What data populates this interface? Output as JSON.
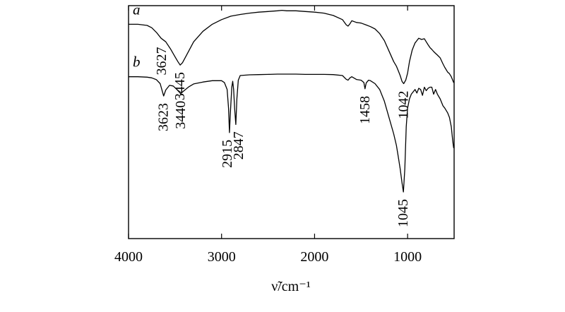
{
  "chart_data": {
    "type": "line",
    "xlabel": "ν̃/cm⁻¹",
    "xlim": [
      4000,
      500
    ],
    "x_reversed": true,
    "x_ticks": [
      4000,
      3000,
      2000,
      1000
    ],
    "x_tick_labels": [
      "4000",
      "3000",
      "2000",
      "1000"
    ],
    "ylabel": "",
    "y_ticks_shown": false,
    "grid": false,
    "series": [
      {
        "name": "a",
        "note": "IR spectrum a (upper trace), relative transmittance",
        "x": [
          4000,
          3900,
          3800,
          3750,
          3700,
          3650,
          3600,
          3550,
          3500,
          3470,
          3445,
          3420,
          3380,
          3300,
          3200,
          3100,
          3000,
          2900,
          2800,
          2700,
          2600,
          2500,
          2400,
          2350,
          2300,
          2200,
          2100,
          2000,
          1900,
          1800,
          1700,
          1660,
          1640,
          1620,
          1600,
          1550,
          1500,
          1450,
          1400,
          1350,
          1300,
          1250,
          1200,
          1150,
          1120,
          1100,
          1080,
          1060,
          1042,
          1020,
          1000,
          980,
          950,
          920,
          900,
          880,
          850,
          820,
          800,
          780,
          760,
          740,
          720,
          700,
          680,
          650,
          620,
          600,
          570,
          550,
          530,
          515,
          505,
          500
        ],
        "y": [
          0.92,
          0.92,
          0.915,
          0.905,
          0.885,
          0.86,
          0.845,
          0.815,
          0.78,
          0.76,
          0.745,
          0.755,
          0.785,
          0.845,
          0.89,
          0.92,
          0.94,
          0.955,
          0.962,
          0.968,
          0.972,
          0.975,
          0.978,
          0.98,
          0.978,
          0.978,
          0.975,
          0.972,
          0.968,
          0.958,
          0.94,
          0.918,
          0.912,
          0.922,
          0.935,
          0.928,
          0.925,
          0.918,
          0.91,
          0.9,
          0.88,
          0.85,
          0.805,
          0.76,
          0.74,
          0.72,
          0.7,
          0.675,
          0.665,
          0.68,
          0.71,
          0.76,
          0.81,
          0.84,
          0.85,
          0.86,
          0.855,
          0.858,
          0.845,
          0.832,
          0.82,
          0.812,
          0.803,
          0.795,
          0.788,
          0.776,
          0.75,
          0.735,
          0.715,
          0.708,
          0.695,
          0.68,
          0.67,
          0.67
        ]
      },
      {
        "name": "b",
        "note": "IR spectrum b (lower trace), relative transmittance",
        "x": [
          4000,
          3900,
          3800,
          3750,
          3700,
          3660,
          3623,
          3600,
          3560,
          3520,
          3480,
          3440,
          3400,
          3350,
          3300,
          3200,
          3100,
          3000,
          2970,
          2940,
          2925,
          2915,
          2905,
          2890,
          2880,
          2870,
          2860,
          2847,
          2835,
          2820,
          2800,
          2700,
          2600,
          2500,
          2400,
          2300,
          2200,
          2100,
          2000,
          1900,
          1800,
          1700,
          1660,
          1640,
          1620,
          1600,
          1550,
          1500,
          1470,
          1458,
          1445,
          1420,
          1400,
          1350,
          1300,
          1250,
          1200,
          1150,
          1120,
          1100,
          1080,
          1060,
          1045,
          1030,
          1015,
          1000,
          980,
          960,
          940,
          920,
          900,
          880,
          860,
          840,
          820,
          800,
          780,
          760,
          740,
          720,
          700,
          680,
          650,
          620,
          600,
          570,
          550,
          530,
          515,
          505,
          500
        ],
        "y": [
          0.695,
          0.695,
          0.693,
          0.69,
          0.682,
          0.665,
          0.612,
          0.638,
          0.658,
          0.655,
          0.64,
          0.622,
          0.636,
          0.652,
          0.664,
          0.672,
          0.678,
          0.678,
          0.67,
          0.64,
          0.56,
          0.455,
          0.54,
          0.65,
          0.675,
          0.64,
          0.56,
          0.49,
          0.6,
          0.68,
          0.7,
          0.703,
          0.704,
          0.705,
          0.706,
          0.706,
          0.706,
          0.705,
          0.705,
          0.705,
          0.704,
          0.7,
          0.684,
          0.68,
          0.69,
          0.695,
          0.683,
          0.68,
          0.67,
          0.643,
          0.668,
          0.68,
          0.678,
          0.665,
          0.64,
          0.59,
          0.52,
          0.45,
          0.4,
          0.35,
          0.3,
          0.24,
          0.2,
          0.3,
          0.48,
          0.56,
          0.6,
          0.62,
          0.63,
          0.64,
          0.625,
          0.645,
          0.64,
          0.615,
          0.65,
          0.635,
          0.645,
          0.65,
          0.65,
          0.62,
          0.64,
          0.62,
          0.6,
          0.57,
          0.56,
          0.54,
          0.52,
          0.48,
          0.42,
          0.39,
          0.39
        ]
      }
    ],
    "series_labels": [
      {
        "series": "a",
        "text": "a"
      },
      {
        "series": "b",
        "text": "b"
      }
    ],
    "annotations": [
      {
        "series": "a",
        "x": 3627,
        "text": "3627"
      },
      {
        "series": "a",
        "x": 3445,
        "text": "3445"
      },
      {
        "series": "a",
        "x": 1042,
        "text": "1042"
      },
      {
        "series": "b",
        "x": 3623,
        "text": "3623"
      },
      {
        "series": "b",
        "x": 3440,
        "text": "3440"
      },
      {
        "series": "b",
        "x": 2915,
        "text": "2915"
      },
      {
        "series": "b",
        "x": 2847,
        "text": "2847"
      },
      {
        "series": "b",
        "x": 1458,
        "text": "1458"
      },
      {
        "series": "b",
        "x": 1045,
        "text": "1045"
      }
    ]
  }
}
